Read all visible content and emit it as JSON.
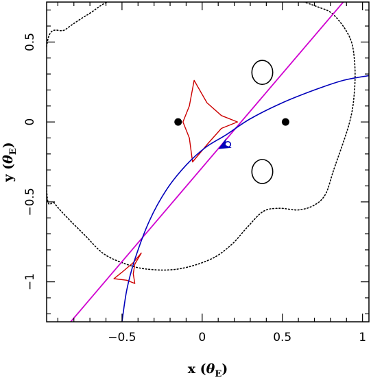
{
  "chart_data": {
    "type": "line",
    "title": "",
    "xlabel": "x (θE)",
    "ylabel": "y (θE)",
    "xlabel_parts": {
      "main": "x (",
      "symbol": "θ",
      "sub": "E",
      "close": ")"
    },
    "ylabel_parts": {
      "main": "y (",
      "symbol": "θ",
      "sub": "E",
      "close": ")"
    },
    "xlim": [
      -0.97,
      1.04
    ],
    "ylim": [
      -1.25,
      0.75
    ],
    "x_ticks": [
      {
        "value": -0.5,
        "label": "−0.5"
      },
      {
        "value": 0,
        "label": "0"
      },
      {
        "value": 0.5,
        "label": "0.5"
      },
      {
        "value": 1,
        "label": "1"
      }
    ],
    "y_ticks": [
      {
        "value": -1,
        "label": "−1"
      },
      {
        "value": -0.5,
        "label": "−0.5"
      },
      {
        "value": 0,
        "label": "0"
      },
      {
        "value": 0.5,
        "label": "0.5"
      }
    ],
    "grid": false,
    "legend": "none",
    "colors": {
      "critical_curve": "#000000",
      "caustic": "#cc0000",
      "straight_trajectory": "#d000d0",
      "curved_trajectory": "#0000bb",
      "lens": "#000000"
    },
    "lens_masses": [
      {
        "x": -0.15,
        "y": 0.0
      },
      {
        "x": 0.52,
        "y": 0.0
      }
    ],
    "critical_curve_outer": [
      {
        "x": -0.97,
        "y": 0.47
      },
      {
        "x": -0.85,
        "y": 0.58
      },
      {
        "x": -0.7,
        "y": 0.68
      },
      {
        "x": -0.56,
        "y": 0.76
      },
      {
        "x": -0.3,
        "y": 0.78
      },
      {
        "x": 0.1,
        "y": 0.78
      },
      {
        "x": 0.4,
        "y": 0.78
      },
      {
        "x": 0.56,
        "y": 0.77
      },
      {
        "x": 0.72,
        "y": 0.72
      },
      {
        "x": 0.82,
        "y": 0.67
      },
      {
        "x": 0.92,
        "y": 0.53
      },
      {
        "x": 0.95,
        "y": 0.38
      },
      {
        "x": 0.95,
        "y": 0.2
      },
      {
        "x": 0.92,
        "y": 0.0
      },
      {
        "x": 0.82,
        "y": -0.3
      },
      {
        "x": 0.77,
        "y": -0.45
      },
      {
        "x": 0.7,
        "y": -0.52
      },
      {
        "x": 0.6,
        "y": -0.55
      },
      {
        "x": 0.48,
        "y": -0.54
      },
      {
        "x": 0.38,
        "y": -0.56
      },
      {
        "x": 0.28,
        "y": -0.66
      },
      {
        "x": 0.18,
        "y": -0.77
      },
      {
        "x": 0.05,
        "y": -0.86
      },
      {
        "x": -0.15,
        "y": -0.92
      },
      {
        "x": -0.35,
        "y": -0.92
      },
      {
        "x": -0.5,
        "y": -0.88
      },
      {
        "x": -0.62,
        "y": -0.82
      },
      {
        "x": -0.73,
        "y": -0.71
      },
      {
        "x": -0.84,
        "y": -0.6
      },
      {
        "x": -0.92,
        "y": -0.51
      },
      {
        "x": -0.97,
        "y": -0.42
      }
    ],
    "critical_curve_ovals": [
      {
        "cx": 0.375,
        "cy": 0.31,
        "rx": 0.065,
        "ry": 0.075
      },
      {
        "cx": 0.375,
        "cy": -0.31,
        "rx": 0.065,
        "ry": 0.075
      }
    ],
    "central_caustic": [
      {
        "x": 0.22,
        "y": 0.0
      },
      {
        "x": 0.12,
        "y": 0.04
      },
      {
        "x": 0.03,
        "y": 0.12
      },
      {
        "x": -0.05,
        "y": 0.26
      },
      {
        "x": -0.08,
        "y": 0.1
      },
      {
        "x": -0.12,
        "y": 0.0
      },
      {
        "x": -0.08,
        "y": -0.1
      },
      {
        "x": -0.06,
        "y": -0.25
      },
      {
        "x": 0.04,
        "y": -0.13
      },
      {
        "x": 0.12,
        "y": -0.04
      },
      {
        "x": 0.22,
        "y": 0.0
      }
    ],
    "secondary_caustic": [
      {
        "x": -0.38,
        "y": -0.82
      },
      {
        "x": -0.43,
        "y": -0.88
      },
      {
        "x": -0.5,
        "y": -0.94
      },
      {
        "x": -0.55,
        "y": -0.98
      },
      {
        "x": -0.47,
        "y": -0.99
      },
      {
        "x": -0.42,
        "y": -1.01
      },
      {
        "x": -0.43,
        "y": -0.95
      },
      {
        "x": -0.42,
        "y": -0.89
      },
      {
        "x": -0.38,
        "y": -0.82
      }
    ],
    "straight_trajectory": [
      {
        "x": -0.82,
        "y": -1.25
      },
      {
        "x": 0.88,
        "y": 0.75
      }
    ],
    "curved_trajectory": [
      {
        "x": -0.5,
        "y": -1.25
      },
      {
        "x": -0.47,
        "y": -1.05
      },
      {
        "x": -0.42,
        "y": -0.86
      },
      {
        "x": -0.33,
        "y": -0.62
      },
      {
        "x": -0.22,
        "y": -0.42
      },
      {
        "x": -0.1,
        "y": -0.27
      },
      {
        "x": 0.02,
        "y": -0.16
      },
      {
        "x": 0.15,
        "y": -0.08
      },
      {
        "x": 0.3,
        "y": 0.02
      },
      {
        "x": 0.5,
        "y": 0.12
      },
      {
        "x": 0.7,
        "y": 0.2
      },
      {
        "x": 0.88,
        "y": 0.26
      },
      {
        "x": 1.04,
        "y": 0.29
      }
    ],
    "source_marker": {
      "x": 0.16,
      "y": -0.14
    },
    "direction_arrow": {
      "x": 0.1,
      "y": -0.17,
      "angle_deg": 210
    }
  }
}
